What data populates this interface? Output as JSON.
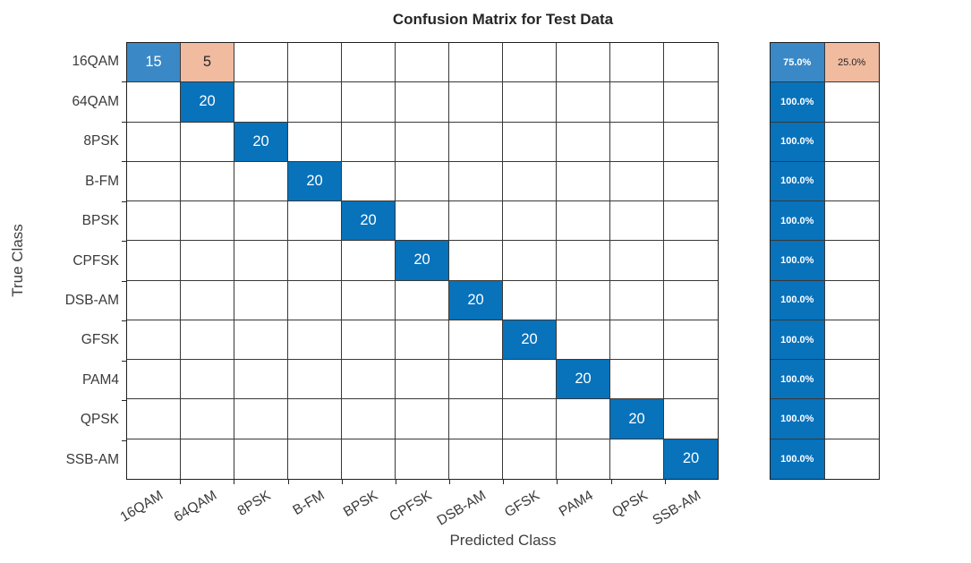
{
  "chart_data": {
    "type": "heatmap",
    "title": "Confusion Matrix for Test Data",
    "xlabel": "Predicted Class",
    "ylabel": "True Class",
    "classes": [
      "16QAM",
      "64QAM",
      "8PSK",
      "B-FM",
      "BPSK",
      "CPFSK",
      "DSB-AM",
      "GFSK",
      "PAM4",
      "QPSK",
      "SSB-AM"
    ],
    "matrix": [
      [
        15,
        5,
        0,
        0,
        0,
        0,
        0,
        0,
        0,
        0,
        0
      ],
      [
        0,
        20,
        0,
        0,
        0,
        0,
        0,
        0,
        0,
        0,
        0
      ],
      [
        0,
        0,
        20,
        0,
        0,
        0,
        0,
        0,
        0,
        0,
        0
      ],
      [
        0,
        0,
        0,
        20,
        0,
        0,
        0,
        0,
        0,
        0,
        0
      ],
      [
        0,
        0,
        0,
        0,
        20,
        0,
        0,
        0,
        0,
        0,
        0
      ],
      [
        0,
        0,
        0,
        0,
        0,
        20,
        0,
        0,
        0,
        0,
        0
      ],
      [
        0,
        0,
        0,
        0,
        0,
        0,
        20,
        0,
        0,
        0,
        0
      ],
      [
        0,
        0,
        0,
        0,
        0,
        0,
        0,
        20,
        0,
        0,
        0
      ],
      [
        0,
        0,
        0,
        0,
        0,
        0,
        0,
        0,
        20,
        0,
        0
      ],
      [
        0,
        0,
        0,
        0,
        0,
        0,
        0,
        0,
        0,
        20,
        0
      ],
      [
        0,
        0,
        0,
        0,
        0,
        0,
        0,
        0,
        0,
        0,
        20
      ]
    ],
    "max_value": 20,
    "row_summary": {
      "correct": [
        "75.0%",
        "100.0%",
        "100.0%",
        "100.0%",
        "100.0%",
        "100.0%",
        "100.0%",
        "100.0%",
        "100.0%",
        "100.0%",
        "100.0%"
      ],
      "incorrect": [
        "25.0%",
        "",
        "",
        "",
        "",
        "",
        "",
        "",
        "",
        "",
        ""
      ]
    },
    "legend_position": "none",
    "grid": true,
    "colors": {
      "diagonal_full": "#0872BB",
      "diagonal_partial": "#3A88C6",
      "off_diagonal": "#F1BBA0",
      "empty": "#FFFFFF",
      "text_light": "#FFFFFF",
      "text_dark": "#262626"
    }
  }
}
